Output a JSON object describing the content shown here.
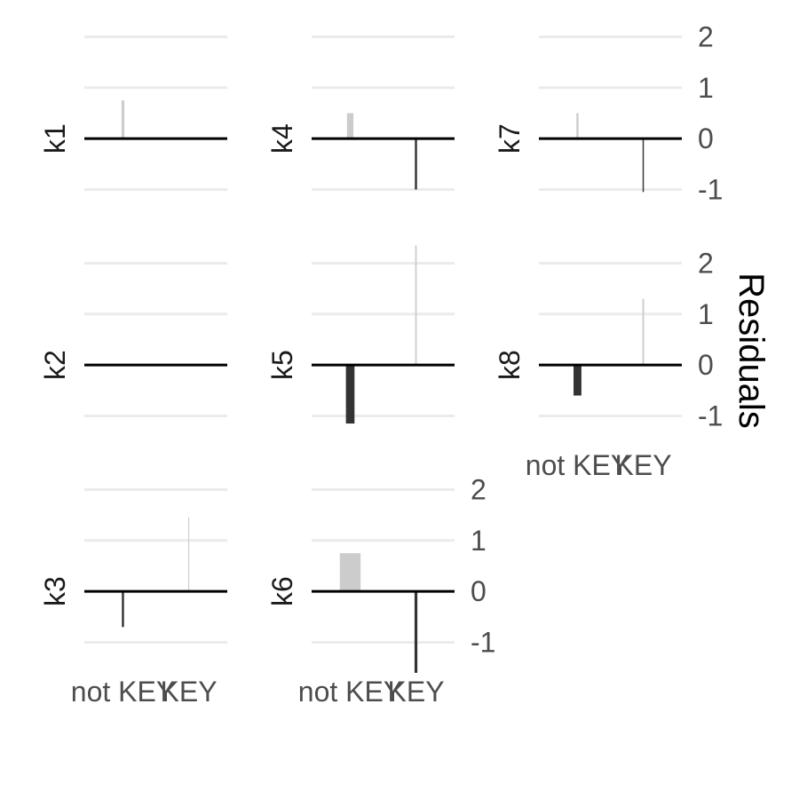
{
  "chart_data": {
    "type": "bar",
    "ylabel": "Residuals",
    "ylim": [
      -1.55,
      2.2
    ],
    "y_ticks": [
      -1,
      0,
      1,
      2
    ],
    "categories": [
      "not KEY",
      "KEY"
    ],
    "grid": true,
    "colors": {
      "grid": "#ebebeb",
      "zero_line": "#000000",
      "positive": "#cccccc",
      "negative": "#333333",
      "tick_text": "#4d4d4d"
    },
    "panels": [
      {
        "label": "k1",
        "values": [
          0.75,
          0.0
        ]
      },
      {
        "label": "k2",
        "values": [
          0.0,
          0.0
        ]
      },
      {
        "label": "k3",
        "values": [
          -0.7,
          1.45
        ]
      },
      {
        "label": "k4",
        "values": [
          0.5,
          -1.0
        ]
      },
      {
        "label": "k5",
        "values": [
          -1.15,
          2.35
        ]
      },
      {
        "label": "k6",
        "values": [
          0.75,
          -1.6
        ]
      },
      {
        "label": "k7",
        "values": [
          0.5,
          -1.05
        ]
      },
      {
        "label": "k8",
        "values": [
          -0.6,
          1.3
        ]
      }
    ],
    "bar_widths": {
      "k1": [
        0.02,
        0.0
      ],
      "k2": [
        0.0,
        0.0
      ],
      "k3": [
        0.015,
        0.007
      ],
      "k4": [
        0.045,
        0.015
      ],
      "k5": [
        0.06,
        0.011
      ],
      "k6": [
        0.145,
        0.02
      ],
      "k7": [
        0.015,
        0.009
      ],
      "k8": [
        0.055,
        0.012
      ]
    }
  }
}
